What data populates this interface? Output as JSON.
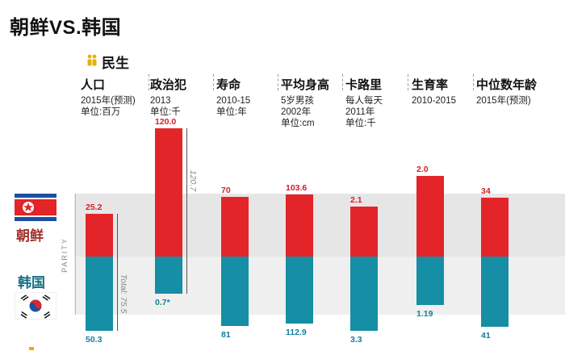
{
  "title": "朝鲜VS.韩国",
  "section": {
    "label": "民生",
    "icon": "people-icon",
    "accent": "#e8b000"
  },
  "parity_label": "PARITY",
  "countries": {
    "nk": {
      "name": "朝鲜",
      "color": "#e32428",
      "flag": "north-korea-flag-icon"
    },
    "sk": {
      "name": "韩国",
      "color": "#168ea5",
      "flag": "south-korea-flag-icon"
    }
  },
  "chart_data": {
    "type": "bar",
    "title": "朝鲜VS.韩国",
    "subtitle": "民生",
    "series": [
      {
        "name": "朝鲜",
        "color": "#e32428"
      },
      {
        "name": "韩国",
        "color": "#168ea5"
      }
    ],
    "categories": [
      {
        "name": "人口",
        "sub": "2015年(预测)\n单位:百万",
        "nk": 25.2,
        "sk": 50.3,
        "nk_label": "25.2",
        "sk_label": "50.3",
        "total": "Total: 75.5"
      },
      {
        "name": "政治犯",
        "sub": "2013\n单位:千",
        "nk": 120.0,
        "sk": 0.7,
        "nk_label": "120.0",
        "sk_label": "0.7*",
        "total": "120.7"
      },
      {
        "name": "寿命",
        "sub": "2010-15\n单位:年",
        "nk": 70,
        "sk": 81,
        "nk_label": "70",
        "sk_label": "81"
      },
      {
        "name": "平均身高",
        "sub": "5岁男孩\n2002年\n单位:cm",
        "nk": 103.6,
        "sk": 112.9,
        "nk_label": "103.6",
        "sk_label": "112.9"
      },
      {
        "name": "卡路里",
        "sub": "每人每天\n2011年\n单位:千",
        "nk": 2.1,
        "sk": 3.3,
        "nk_label": "2.1",
        "sk_label": "3.3"
      },
      {
        "name": "生育率",
        "sub": "2010-2015",
        "nk": 2.0,
        "sk": 1.19,
        "nk_label": "2.0",
        "sk_label": "1.19"
      },
      {
        "name": "中位数年龄",
        "sub": "2015年(预测)",
        "nk": 34,
        "sk": 41,
        "nk_label": "34",
        "sk_label": "41"
      }
    ]
  }
}
